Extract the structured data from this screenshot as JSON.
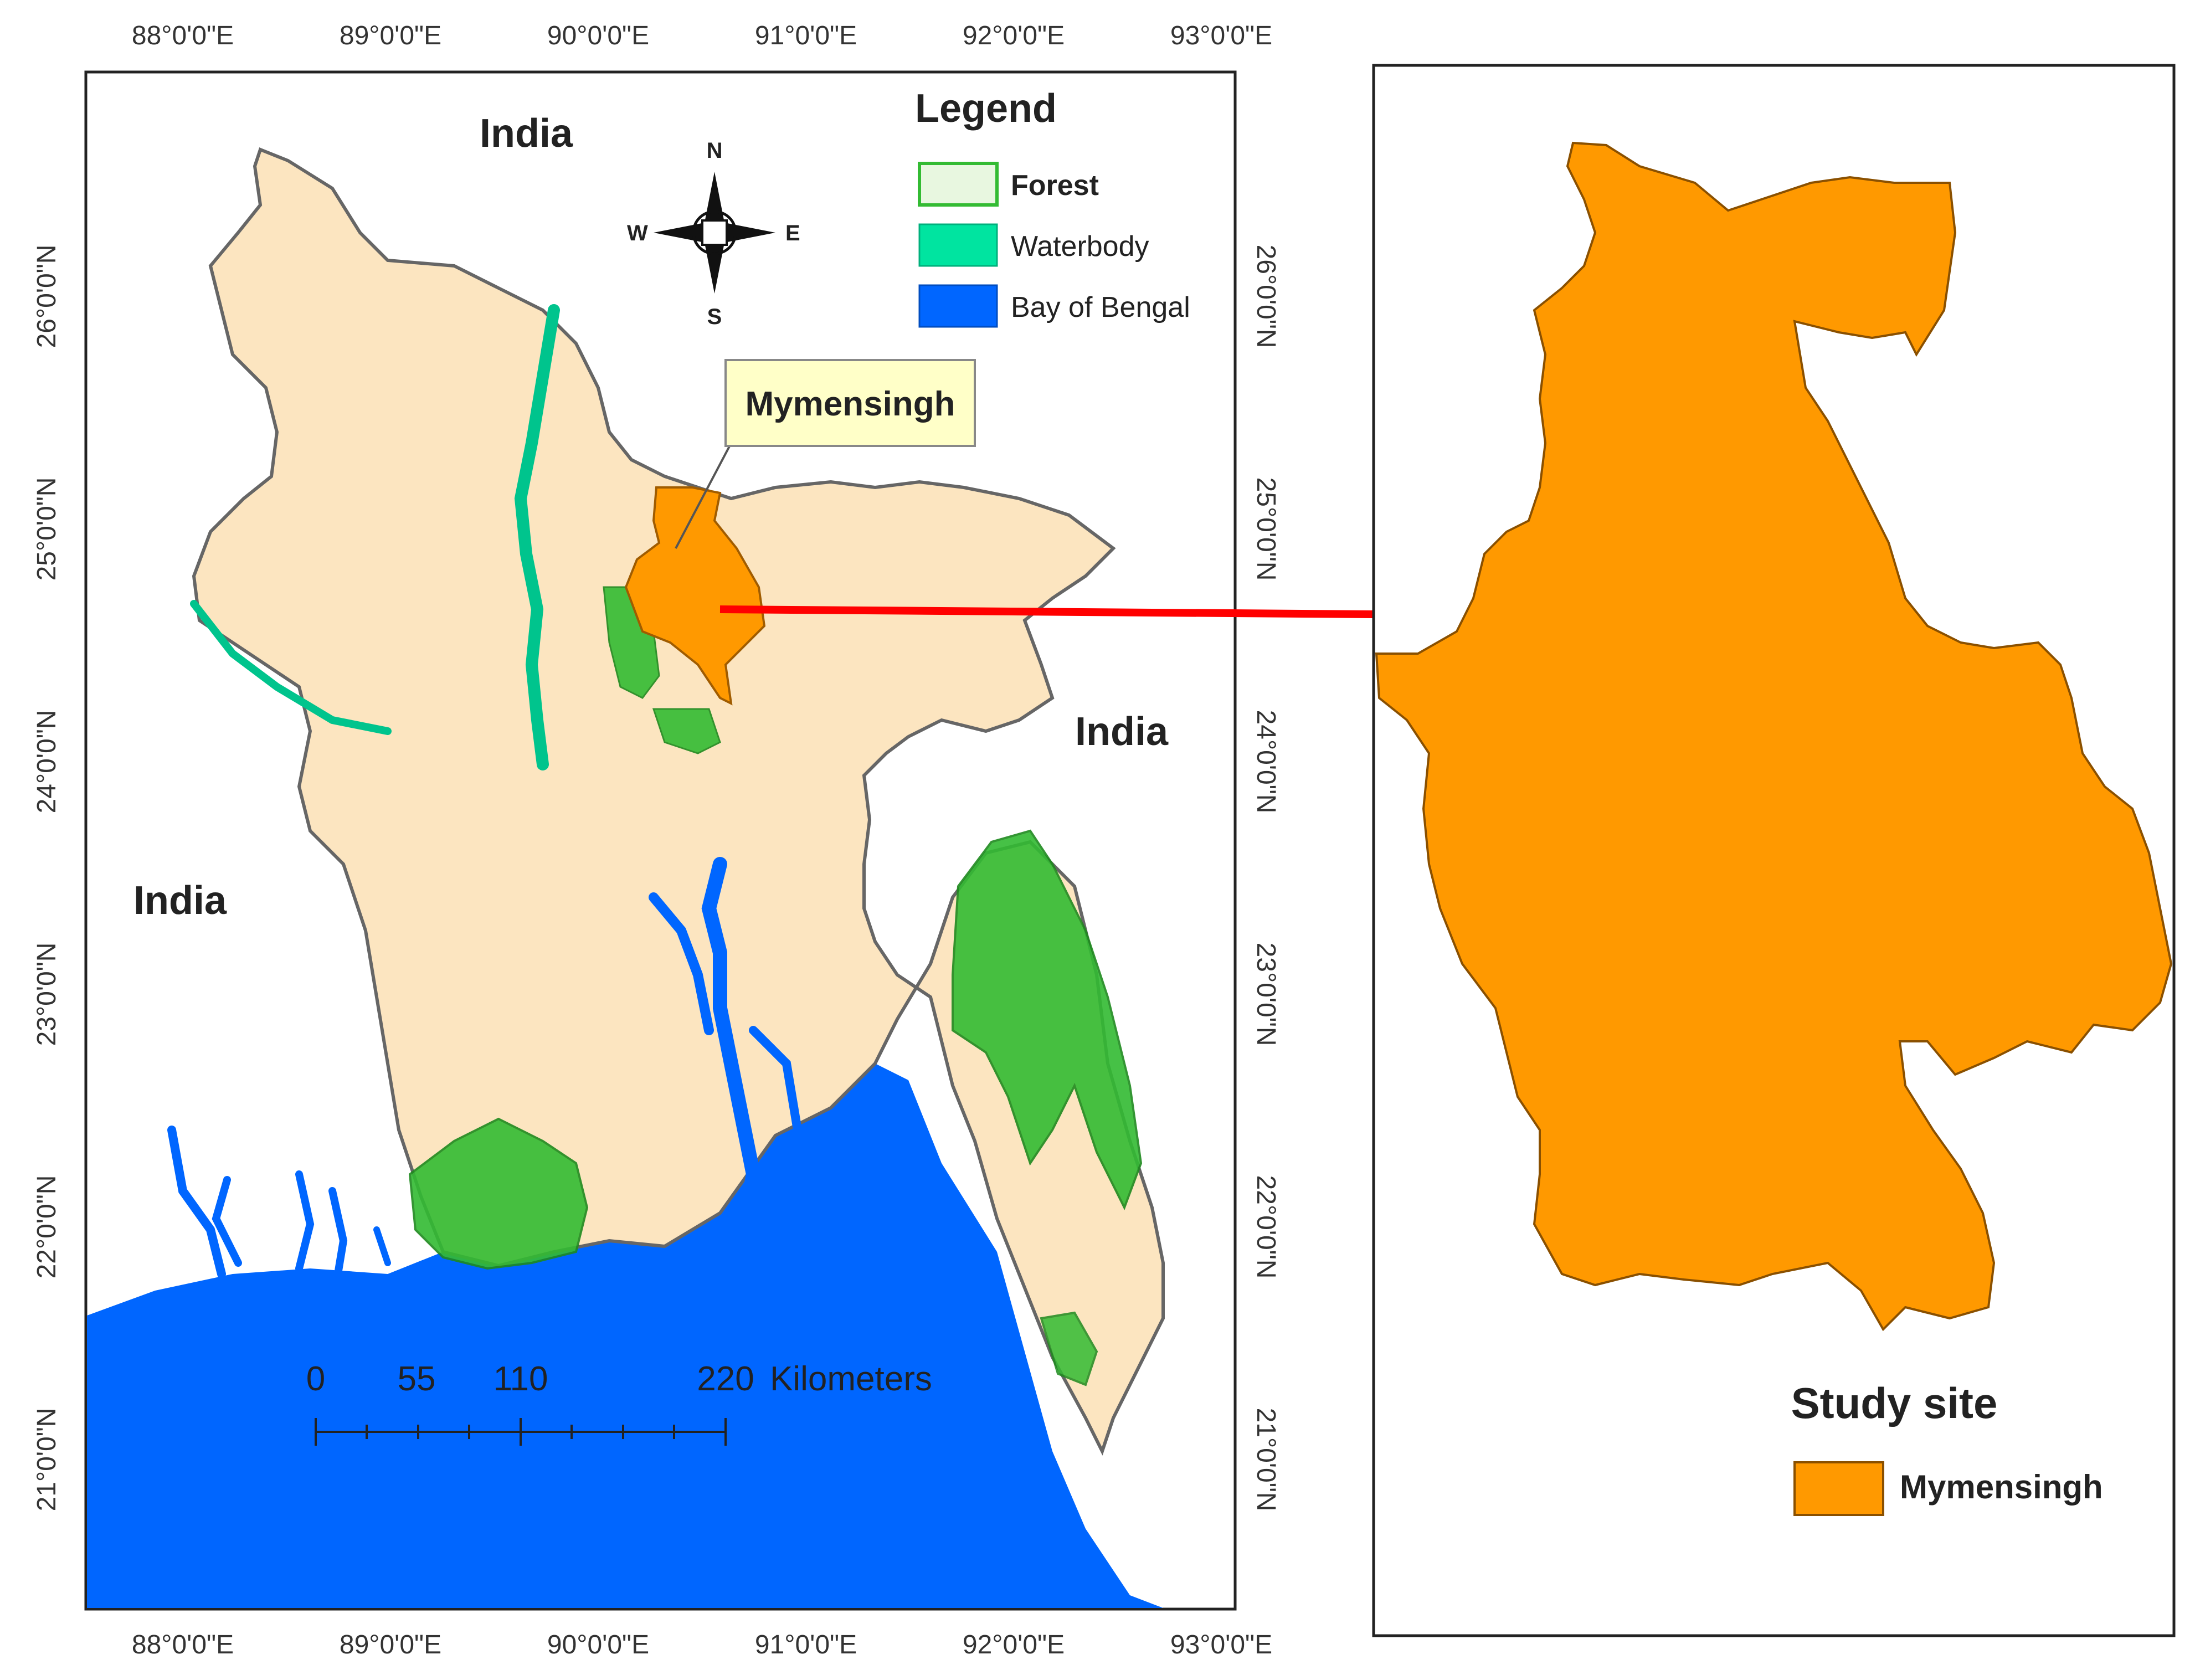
{
  "map_main": {
    "longitude_labels": [
      "88°0'0\"E",
      "89°0'0\"E",
      "90°0'0\"E",
      "91°0'0\"E",
      "92°0'0\"E",
      "93°0'0\"E"
    ],
    "latitude_labels": [
      "26°0'0\"N",
      "25°0'0\"N",
      "24°0'0\"N",
      "23°0'0\"N",
      "22°0'0\"N",
      "21°0'0\"N"
    ],
    "places": {
      "india_north": "India",
      "india_east": "India",
      "india_west": "India"
    },
    "callout": "Mymensingh",
    "compass": {
      "n": "N",
      "s": "S",
      "e": "E",
      "w": "W"
    },
    "legend": {
      "title": "Legend",
      "items": [
        {
          "label": "Forest",
          "color": "#33bb33"
        },
        {
          "label": "Waterbody",
          "color": "#00e4a0"
        },
        {
          "label": "Bay of Bengal",
          "color": "#0066ff"
        }
      ]
    },
    "scale_bar": {
      "labels": [
        "0",
        "55",
        "110",
        "220"
      ],
      "unit": "Kilometers"
    }
  },
  "inset": {
    "title": "Study site",
    "legend_item": {
      "label": "Mymensingh",
      "color": "#ff9900"
    }
  },
  "colors": {
    "land": "#fce5c0",
    "sea": "#0066ff",
    "forest": "#33bb33",
    "water": "#00e4a0",
    "highlight": "#ff9900",
    "arrow": "#ff0000"
  }
}
